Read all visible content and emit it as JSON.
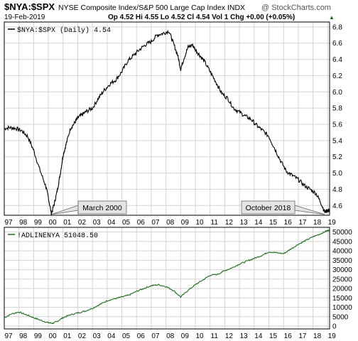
{
  "header": {
    "symbol": "$NYA:$SPX",
    "description": "NYSE Composite Index/S&P 500 Large Cap Index  INDX",
    "watermark": "@ StockCharts.com",
    "date": "19-Feb-2019",
    "quote": "Op 4.52  Hi 4.55  Lo 4.52  Cl 4.54  Vol 1  Chg +0.00 (+0.05%)",
    "quote_arrow": "▲"
  },
  "colors": {
    "ratio_line": "#000000",
    "breadth_line": "#1e6b1e",
    "grid": "#d4d4d4",
    "frame": "#000000",
    "callout_fill": "#e4e4e4"
  },
  "chart_data": [
    {
      "type": "line",
      "legend": "$NYA:$SPX (Daily) 4.54",
      "x_ticks": [
        "97",
        "98",
        "99",
        "00",
        "01",
        "02",
        "03",
        "04",
        "05",
        "06",
        "07",
        "08",
        "09",
        "10",
        "11",
        "12",
        "13",
        "14",
        "15",
        "16",
        "17",
        "18",
        "19"
      ],
      "x_range": [
        1997.0,
        2019.13
      ],
      "y_ticks": [
        "4.6",
        "4.8",
        "5.0",
        "5.2",
        "5.4",
        "5.6",
        "5.8",
        "6.0",
        "6.2",
        "6.4",
        "6.6",
        "6.8"
      ],
      "y_range": [
        4.48,
        6.86
      ],
      "grid": true,
      "annotations": [
        {
          "text": "March 2000",
          "x": 2000.2,
          "y": 4.49
        },
        {
          "text": "October 2018",
          "x": 2018.8,
          "y": 4.49
        }
      ],
      "series": [
        {
          "x": [
            1997.0,
            1997.4,
            1997.8,
            1998.2,
            1998.6,
            1999.0,
            1999.4,
            1999.8,
            2000.0,
            2000.2,
            2000.4,
            2000.6,
            2000.8,
            2001.0,
            2001.2,
            2001.5,
            2001.8,
            2002.0,
            2002.3,
            2002.6,
            2003.0,
            2003.4,
            2003.8,
            2004.2,
            2004.6,
            2005.0,
            2005.4,
            2005.8,
            2006.2,
            2006.6,
            2007.0,
            2007.4,
            2007.8,
            2008.2,
            2008.5,
            2008.8,
            2009.0,
            2009.2,
            2009.5,
            2009.8,
            2010.0,
            2010.3,
            2010.6,
            2011.0,
            2011.4,
            2011.8,
            2012.2,
            2012.6,
            2013.0,
            2013.4,
            2013.8,
            2014.2,
            2014.6,
            2015.0,
            2015.4,
            2015.8,
            2016.2,
            2016.6,
            2017.0,
            2017.4,
            2017.8,
            2018.2,
            2018.5,
            2018.8,
            2019.0,
            2019.13
          ],
          "y": [
            5.55,
            5.56,
            5.55,
            5.52,
            5.45,
            5.28,
            5.05,
            4.85,
            4.7,
            4.5,
            4.62,
            4.78,
            4.98,
            5.22,
            5.35,
            5.55,
            5.62,
            5.68,
            5.72,
            5.76,
            5.8,
            5.92,
            6.02,
            6.1,
            6.15,
            6.25,
            6.38,
            6.45,
            6.52,
            6.58,
            6.62,
            6.7,
            6.72,
            6.75,
            6.6,
            6.45,
            6.28,
            6.4,
            6.55,
            6.58,
            6.52,
            6.45,
            6.38,
            6.25,
            6.12,
            5.98,
            5.92,
            5.8,
            5.75,
            5.7,
            5.66,
            5.58,
            5.52,
            5.45,
            5.3,
            5.15,
            5.02,
            4.97,
            4.92,
            4.85,
            4.8,
            4.75,
            4.65,
            4.52,
            4.54,
            4.54
          ]
        }
      ]
    },
    {
      "type": "line",
      "legend": "!ADLINENYA 51048.50",
      "x_ticks": [
        "97",
        "98",
        "99",
        "00",
        "01",
        "02",
        "03",
        "04",
        "05",
        "06",
        "07",
        "08",
        "09",
        "10",
        "11",
        "12",
        "13",
        "14",
        "15",
        "16",
        "17",
        "18",
        "19"
      ],
      "x_range": [
        1997.0,
        2019.13
      ],
      "y_ticks": [
        "0",
        "5000",
        "10000",
        "15000",
        "20000",
        "25000",
        "30000",
        "35000",
        "40000",
        "45000",
        "50000"
      ],
      "y_range": [
        -1500,
        52500
      ],
      "grid": true,
      "series": [
        {
          "x": [
            1997.0,
            1997.5,
            1998.0,
            1998.5,
            1999.0,
            1999.5,
            2000.0,
            2000.3,
            2000.6,
            2001.0,
            2001.5,
            2002.0,
            2002.5,
            2003.0,
            2003.5,
            2004.0,
            2004.5,
            2005.0,
            2005.5,
            2006.0,
            2006.5,
            2007.0,
            2007.5,
            2008.0,
            2008.5,
            2009.0,
            2009.5,
            2010.0,
            2010.5,
            2011.0,
            2011.5,
            2012.0,
            2012.5,
            2013.0,
            2013.5,
            2014.0,
            2014.5,
            2015.0,
            2015.5,
            2016.0,
            2016.5,
            2017.0,
            2017.5,
            2018.0,
            2018.5,
            2018.9,
            2019.13
          ],
          "y": [
            4500,
            6500,
            7500,
            6000,
            4500,
            3000,
            1800,
            1500,
            2500,
            4500,
            6000,
            7000,
            8000,
            9500,
            11500,
            13500,
            14500,
            15500,
            16500,
            18500,
            20000,
            21500,
            22000,
            21000,
            19000,
            15500,
            19000,
            22000,
            24500,
            27000,
            27500,
            29500,
            31000,
            33000,
            34500,
            36000,
            37500,
            39500,
            39000,
            38500,
            41000,
            43500,
            45500,
            47500,
            49000,
            50500,
            51048
          ]
        }
      ]
    }
  ]
}
